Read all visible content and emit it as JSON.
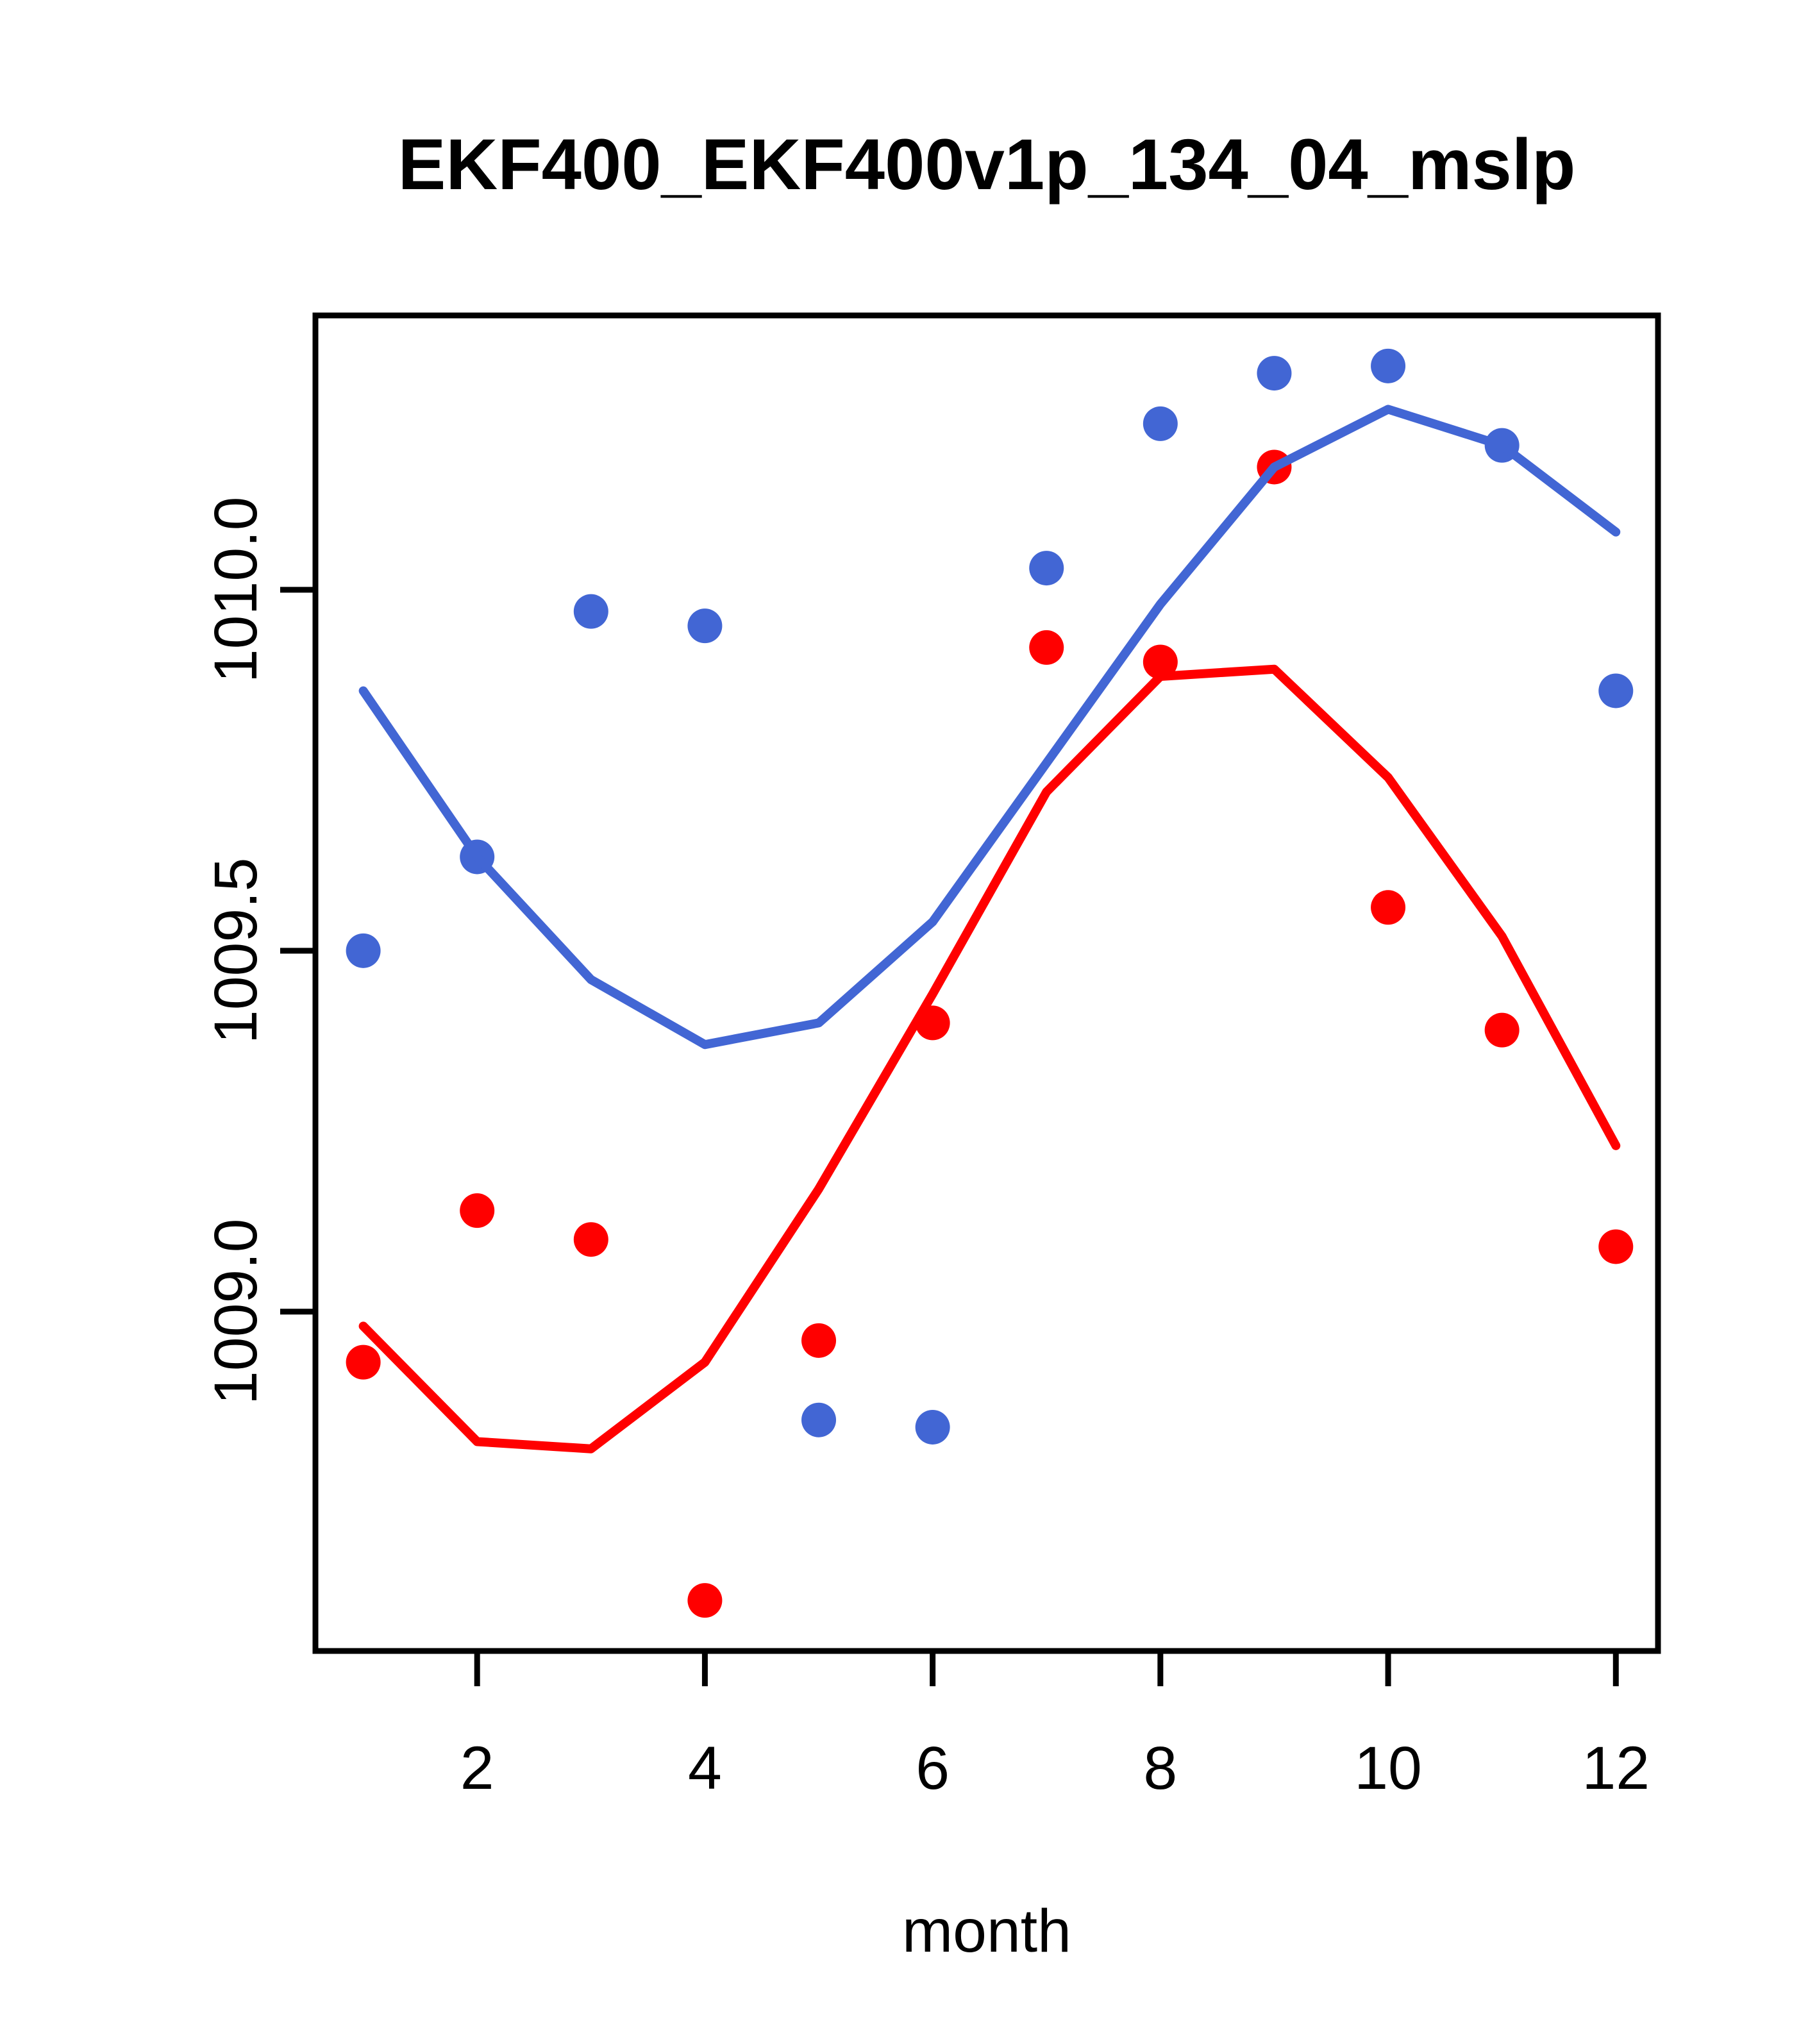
{
  "figure": {
    "background": "#ffffff",
    "frame_color": "#000000"
  },
  "chart_data": {
    "type": "line",
    "title": "EKF400_EKF400v1p_134_04_mslp",
    "xlabel": "month",
    "ylabel": "",
    "grid": false,
    "legend": "none",
    "x": [
      1,
      2,
      3,
      4,
      5,
      6,
      7,
      8,
      9,
      10,
      11,
      12
    ],
    "x_ticks": [
      2,
      4,
      6,
      8,
      10,
      12
    ],
    "y_ticks": [
      "1009.0",
      "1009.5",
      "1010.0"
    ],
    "xlim": [
      0.58,
      12.37
    ],
    "ylim": [
      1008.53,
      1010.38
    ],
    "colors": {
      "blue": "#4266D4",
      "red": "#FF0000"
    },
    "series": [
      {
        "name": "blue-points",
        "type": "scatter",
        "color": "#4266D4",
        "values": [
          1009.5,
          1009.63,
          1009.97,
          1009.95,
          1008.85,
          1008.84,
          1010.03,
          1010.23,
          1010.3,
          1010.31,
          1010.2,
          1009.86
        ]
      },
      {
        "name": "red-points",
        "type": "scatter",
        "color": "#FF0000",
        "values": [
          1008.93,
          1009.14,
          1009.1,
          1008.6,
          1008.96,
          1009.4,
          1009.92,
          1009.9,
          1010.17,
          1009.56,
          1009.39,
          1009.09
        ]
      },
      {
        "name": "blue-line",
        "type": "line",
        "color": "#4266D4",
        "values": [
          1009.86,
          1009.63,
          1009.46,
          1009.37,
          1009.4,
          1009.54,
          1009.76,
          1009.98,
          1010.17,
          1010.25,
          1010.2,
          1010.08
        ]
      },
      {
        "name": "red-line",
        "type": "line",
        "color": "#FF0000",
        "values": [
          1008.98,
          1008.82,
          1008.81,
          1008.93,
          1009.17,
          1009.44,
          1009.72,
          1009.88,
          1009.89,
          1009.74,
          1009.52,
          1009.23
        ]
      }
    ]
  }
}
